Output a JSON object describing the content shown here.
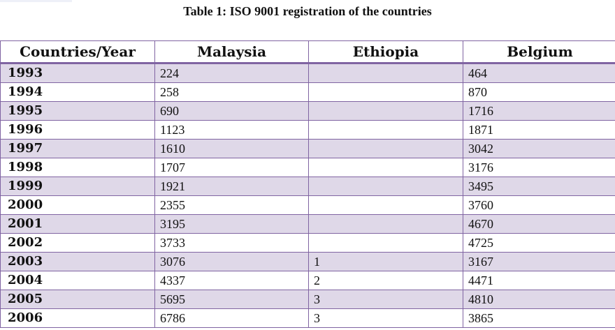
{
  "caption": "Table 1: ISO 9001 registration of the countries",
  "table": {
    "headers": [
      "Countries/Year",
      "Malaysia",
      "Ethiopia",
      "Belgium"
    ],
    "rows": [
      {
        "year": "1993",
        "malaysia": "224",
        "ethiopia": "",
        "belgium": "464"
      },
      {
        "year": "1994",
        "malaysia": "258",
        "ethiopia": "",
        "belgium": "870"
      },
      {
        "year": "1995",
        "malaysia": "690",
        "ethiopia": "",
        "belgium": "1716"
      },
      {
        "year": "1996",
        "malaysia": "1123",
        "ethiopia": "",
        "belgium": "1871"
      },
      {
        "year": "1997",
        "malaysia": "1610",
        "ethiopia": "",
        "belgium": "3042"
      },
      {
        "year": "1998",
        "malaysia": "1707",
        "ethiopia": "",
        "belgium": "3176"
      },
      {
        "year": "1999",
        "malaysia": "1921",
        "ethiopia": "",
        "belgium": "3495"
      },
      {
        "year": "2000",
        "malaysia": "2355",
        "ethiopia": "",
        "belgium": "3760"
      },
      {
        "year": "2001",
        "malaysia": "3195",
        "ethiopia": "",
        "belgium": "4670"
      },
      {
        "year": "2002",
        "malaysia": "3733",
        "ethiopia": "",
        "belgium": "4725"
      },
      {
        "year": "2003",
        "malaysia": "3076",
        "ethiopia": "1",
        "belgium": "3167"
      },
      {
        "year": "2004",
        "malaysia": "4337",
        "ethiopia": "2",
        "belgium": "4471"
      },
      {
        "year": "2005",
        "malaysia": "5695",
        "ethiopia": "3",
        "belgium": "4810"
      },
      {
        "year": "2006",
        "malaysia": "6786",
        "ethiopia": "3",
        "belgium": "3865"
      }
    ]
  },
  "colors": {
    "border": "#8064a2",
    "band": "#dfd8e8"
  }
}
